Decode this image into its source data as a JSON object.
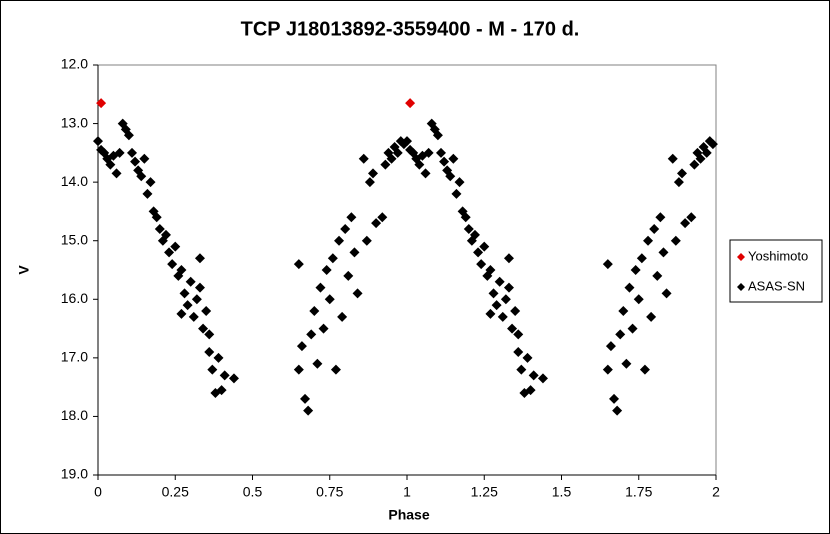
{
  "chart_data": {
    "type": "scatter",
    "title": "TCP J18013892-3559400  - M - 170 d.",
    "x_label": "Phase",
    "y_label": "V",
    "xlim": [
      0,
      2
    ],
    "xticks": [
      0,
      0.25,
      0.5,
      0.75,
      1,
      1.25,
      1.5,
      1.75,
      2
    ],
    "ylim": [
      12,
      19
    ],
    "y_inverted": true,
    "yticks": [
      {
        "value": 12,
        "label": "12.0"
      },
      {
        "value": 13,
        "label": "13.0"
      },
      {
        "value": 14,
        "label": "14.0"
      },
      {
        "value": 15,
        "label": "15.0"
      },
      {
        "value": 16,
        "label": "16.0"
      },
      {
        "value": 17,
        "label": "17.0"
      },
      {
        "value": 18,
        "label": "18.0"
      },
      {
        "value": 19,
        "label": "19.0"
      }
    ],
    "legend": "right",
    "series": [
      {
        "name": "Yoshimoto",
        "color": "#e00000",
        "x": [
          0.01,
          1.01
        ],
        "values": [
          12.65,
          12.65
        ]
      },
      {
        "name": "ASAS-SN",
        "color": "#000000",
        "x": [
          0.0,
          0.01,
          0.02,
          0.03,
          0.04,
          0.05,
          0.06,
          0.07,
          0.08,
          0.09,
          0.1,
          0.11,
          0.12,
          0.13,
          0.14,
          0.15,
          0.16,
          0.17,
          0.18,
          0.19,
          0.2,
          0.21,
          0.22,
          0.23,
          0.24,
          0.25,
          0.26,
          0.27,
          0.27,
          0.28,
          0.29,
          0.3,
          0.31,
          0.32,
          0.33,
          0.33,
          0.34,
          0.35,
          0.36,
          0.36,
          0.37,
          0.38,
          0.39,
          0.4,
          0.41,
          0.44,
          0.65,
          0.65,
          0.66,
          0.67,
          0.68,
          0.69,
          0.7,
          0.71,
          0.72,
          0.73,
          0.74,
          0.75,
          0.76,
          0.77,
          0.78,
          0.79,
          0.8,
          0.81,
          0.82,
          0.83,
          0.84,
          0.86,
          0.87,
          0.88,
          0.89,
          0.9,
          0.92,
          0.93,
          0.94,
          0.95,
          0.96,
          0.97,
          0.98,
          0.99,
          1.0,
          1.01,
          1.02,
          1.03,
          1.04,
          1.05,
          1.06,
          1.07,
          1.08,
          1.09,
          1.1,
          1.11,
          1.12,
          1.13,
          1.14,
          1.15,
          1.16,
          1.17,
          1.18,
          1.19,
          1.2,
          1.21,
          1.22,
          1.23,
          1.24,
          1.25,
          1.26,
          1.27,
          1.27,
          1.28,
          1.29,
          1.3,
          1.31,
          1.32,
          1.33,
          1.33,
          1.34,
          1.35,
          1.36,
          1.36,
          1.37,
          1.38,
          1.39,
          1.4,
          1.41,
          1.44,
          1.65,
          1.65,
          1.66,
          1.67,
          1.68,
          1.69,
          1.7,
          1.71,
          1.72,
          1.73,
          1.74,
          1.75,
          1.76,
          1.77,
          1.78,
          1.79,
          1.8,
          1.81,
          1.82,
          1.83,
          1.84,
          1.86,
          1.87,
          1.88,
          1.89,
          1.9,
          1.92,
          1.93,
          1.94,
          1.95,
          1.96,
          1.97,
          1.98,
          1.99
        ],
        "values": [
          13.3,
          13.45,
          13.5,
          13.6,
          13.7,
          13.55,
          13.85,
          13.5,
          13.0,
          13.1,
          13.2,
          13.5,
          13.65,
          13.8,
          13.9,
          13.6,
          14.2,
          14.0,
          14.5,
          14.6,
          14.8,
          15.0,
          14.9,
          15.2,
          15.4,
          15.1,
          15.6,
          15.5,
          16.25,
          15.9,
          16.1,
          15.7,
          16.3,
          16.0,
          15.8,
          15.3,
          16.5,
          16.2,
          16.9,
          16.6,
          17.2,
          17.6,
          17.0,
          17.55,
          17.3,
          17.35,
          15.4,
          17.2,
          16.8,
          17.7,
          17.9,
          16.6,
          16.2,
          17.1,
          15.8,
          16.5,
          15.5,
          16.0,
          15.3,
          17.2,
          15.0,
          16.3,
          14.8,
          15.6,
          14.6,
          15.2,
          15.9,
          13.6,
          15.0,
          14.0,
          13.85,
          14.7,
          14.6,
          13.7,
          13.5,
          13.6,
          13.4,
          13.5,
          13.3,
          13.35,
          13.3,
          13.45,
          13.5,
          13.6,
          13.7,
          13.55,
          13.85,
          13.5,
          13.0,
          13.1,
          13.2,
          13.5,
          13.65,
          13.8,
          13.9,
          13.6,
          14.2,
          14.0,
          14.5,
          14.6,
          14.8,
          15.0,
          14.9,
          15.2,
          15.4,
          15.1,
          15.6,
          15.5,
          16.25,
          15.9,
          16.1,
          15.7,
          16.3,
          16.0,
          15.8,
          15.3,
          16.5,
          16.2,
          16.9,
          16.6,
          17.2,
          17.6,
          17.0,
          17.55,
          17.3,
          17.35,
          15.4,
          17.2,
          16.8,
          17.7,
          17.9,
          16.6,
          16.2,
          17.1,
          15.8,
          16.5,
          15.5,
          16.0,
          15.3,
          17.2,
          15.0,
          16.3,
          14.8,
          15.6,
          14.6,
          15.2,
          15.9,
          13.6,
          15.0,
          14.0,
          13.85,
          14.7,
          14.6,
          13.7,
          13.5,
          13.6,
          13.4,
          13.5,
          13.3,
          13.35
        ]
      }
    ]
  }
}
